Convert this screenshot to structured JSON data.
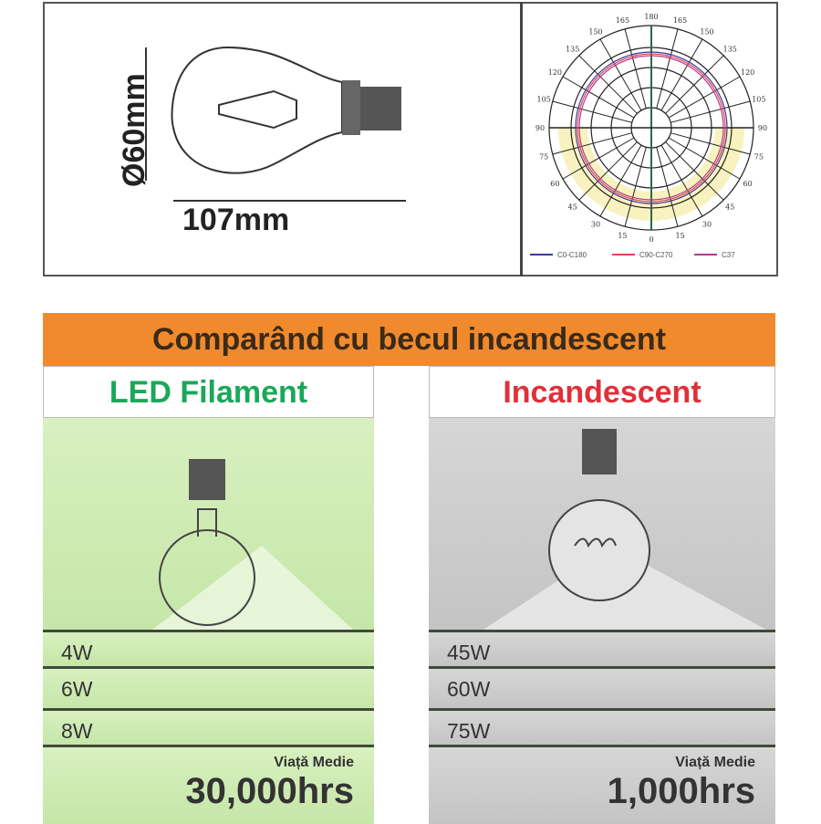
{
  "dimensions": {
    "diameter": "Ø60mm",
    "length": "107mm"
  },
  "polar": {
    "angle_labels": [
      "180",
      "165",
      "150",
      "135",
      "120",
      "105",
      "90",
      "75",
      "60",
      "45",
      "30",
      "15",
      "0"
    ],
    "legend": [
      "C0-C180",
      "C90-C270",
      "C37"
    ],
    "legend_colors": [
      "#3a3a9a",
      "#e0405a",
      "#b03a8a"
    ]
  },
  "header": "Comparând cu becul incandescent",
  "led": {
    "title": "LED Filament",
    "title_color": "#1aa858",
    "watts": [
      "4W",
      "6W",
      "8W"
    ],
    "life_label": "Viață Medie",
    "life_value": "30,000hrs"
  },
  "inc": {
    "title": "Incandescent",
    "title_color": "#e0303a",
    "watts": [
      "45W",
      "60W",
      "75W"
    ],
    "life_label": "Viață Medie",
    "life_value": "1,000hrs"
  }
}
